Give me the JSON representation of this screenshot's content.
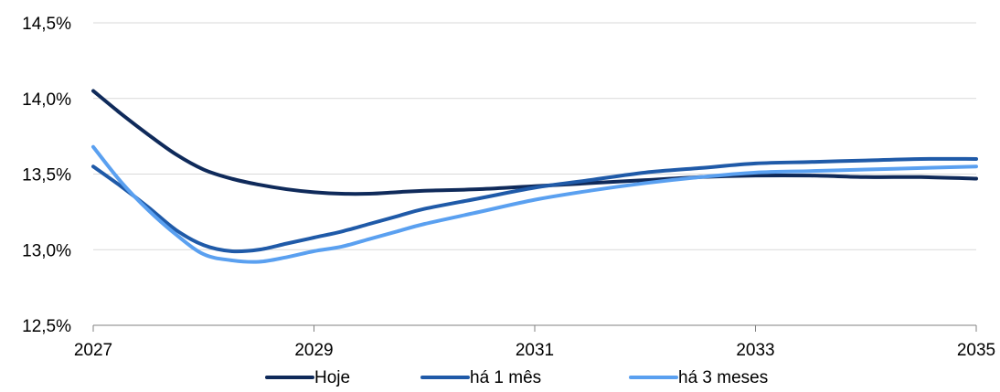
{
  "chart_data": {
    "type": "line",
    "title": "",
    "xlabel": "",
    "ylabel": "",
    "xlim": [
      2027,
      2035
    ],
    "ylim": [
      12.5,
      14.5
    ],
    "x_ticks": [
      2027,
      2029,
      2031,
      2033,
      2035
    ],
    "x_tick_labels": [
      "2027",
      "2029",
      "2031",
      "2033",
      "2035"
    ],
    "y_ticks": [
      12.5,
      13.0,
      13.5,
      14.0,
      14.5
    ],
    "y_tick_labels": [
      "12,5%",
      "13,0%",
      "13,5%",
      "14,0%",
      "14,5%"
    ],
    "grid": "horizontal",
    "legend_position": "bottom",
    "series": [
      {
        "name": "Hoje",
        "color": "#0f2a5a",
        "points": [
          [
            2027.0,
            14.05
          ],
          [
            2027.25,
            13.9
          ],
          [
            2027.5,
            13.76
          ],
          [
            2027.75,
            13.63
          ],
          [
            2028.0,
            13.53
          ],
          [
            2028.25,
            13.47
          ],
          [
            2028.5,
            13.43
          ],
          [
            2028.75,
            13.4
          ],
          [
            2029.0,
            13.38
          ],
          [
            2029.25,
            13.37
          ],
          [
            2029.5,
            13.37
          ],
          [
            2029.75,
            13.38
          ],
          [
            2030.0,
            13.39
          ],
          [
            2030.5,
            13.4
          ],
          [
            2031.0,
            13.42
          ],
          [
            2031.5,
            13.44
          ],
          [
            2032.0,
            13.46
          ],
          [
            2032.5,
            13.48
          ],
          [
            2033.0,
            13.49
          ],
          [
            2033.5,
            13.49
          ],
          [
            2034.0,
            13.48
          ],
          [
            2034.5,
            13.48
          ],
          [
            2035.0,
            13.47
          ]
        ]
      },
      {
        "name": "há 1 mês",
        "color": "#1f5aa8",
        "points": [
          [
            2027.0,
            13.55
          ],
          [
            2027.25,
            13.42
          ],
          [
            2027.5,
            13.28
          ],
          [
            2027.75,
            13.13
          ],
          [
            2028.0,
            13.03
          ],
          [
            2028.25,
            12.99
          ],
          [
            2028.5,
            13.0
          ],
          [
            2028.75,
            13.04
          ],
          [
            2029.0,
            13.08
          ],
          [
            2029.25,
            13.12
          ],
          [
            2029.5,
            13.17
          ],
          [
            2029.75,
            13.22
          ],
          [
            2030.0,
            13.27
          ],
          [
            2030.5,
            13.34
          ],
          [
            2031.0,
            13.41
          ],
          [
            2031.5,
            13.46
          ],
          [
            2032.0,
            13.51
          ],
          [
            2032.5,
            13.54
          ],
          [
            2033.0,
            13.57
          ],
          [
            2033.5,
            13.58
          ],
          [
            2034.0,
            13.59
          ],
          [
            2034.5,
            13.6
          ],
          [
            2035.0,
            13.6
          ]
        ]
      },
      {
        "name": "há 3 meses",
        "color": "#5aa0f0",
        "points": [
          [
            2027.0,
            13.68
          ],
          [
            2027.25,
            13.45
          ],
          [
            2027.5,
            13.26
          ],
          [
            2027.75,
            13.1
          ],
          [
            2028.0,
            12.97
          ],
          [
            2028.25,
            12.93
          ],
          [
            2028.5,
            12.92
          ],
          [
            2028.75,
            12.95
          ],
          [
            2029.0,
            12.99
          ],
          [
            2029.25,
            13.02
          ],
          [
            2029.5,
            13.07
          ],
          [
            2029.75,
            13.12
          ],
          [
            2030.0,
            13.17
          ],
          [
            2030.5,
            13.25
          ],
          [
            2031.0,
            13.33
          ],
          [
            2031.5,
            13.39
          ],
          [
            2032.0,
            13.44
          ],
          [
            2032.5,
            13.48
          ],
          [
            2033.0,
            13.51
          ],
          [
            2033.5,
            13.52
          ],
          [
            2034.0,
            13.53
          ],
          [
            2034.5,
            13.54
          ],
          [
            2035.0,
            13.55
          ]
        ]
      }
    ]
  }
}
